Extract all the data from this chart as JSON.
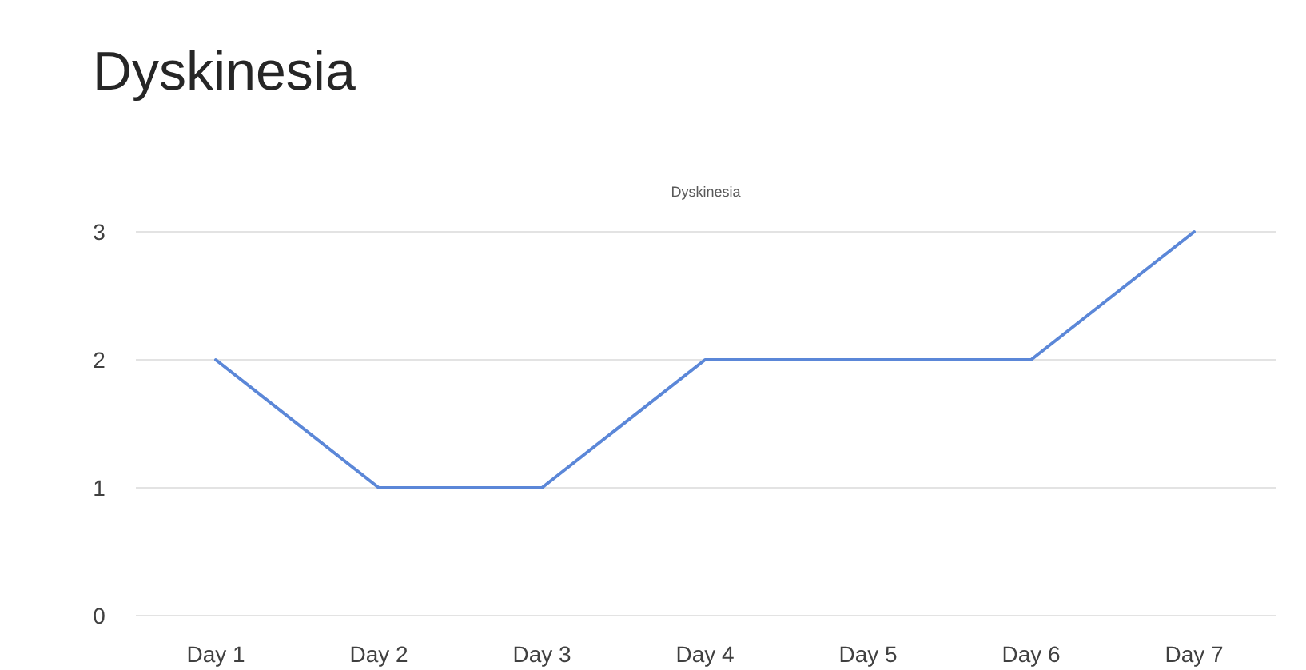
{
  "chart_data": {
    "type": "line",
    "title": "Dyskinesia",
    "subtitle": "Dyskinesia",
    "categories": [
      "Day 1",
      "Day 2",
      "Day 3",
      "Day 4",
      "Day 5",
      "Day 6",
      "Day 7"
    ],
    "series": [
      {
        "color": "#5b87d8",
        "values": [
          2,
          1,
          1,
          2,
          2,
          2,
          3
        ]
      }
    ],
    "ylim": [
      0,
      3
    ],
    "yticks": [
      0,
      1,
      2,
      3
    ],
    "grid": "y",
    "marker": "none",
    "line_style": "solid"
  }
}
